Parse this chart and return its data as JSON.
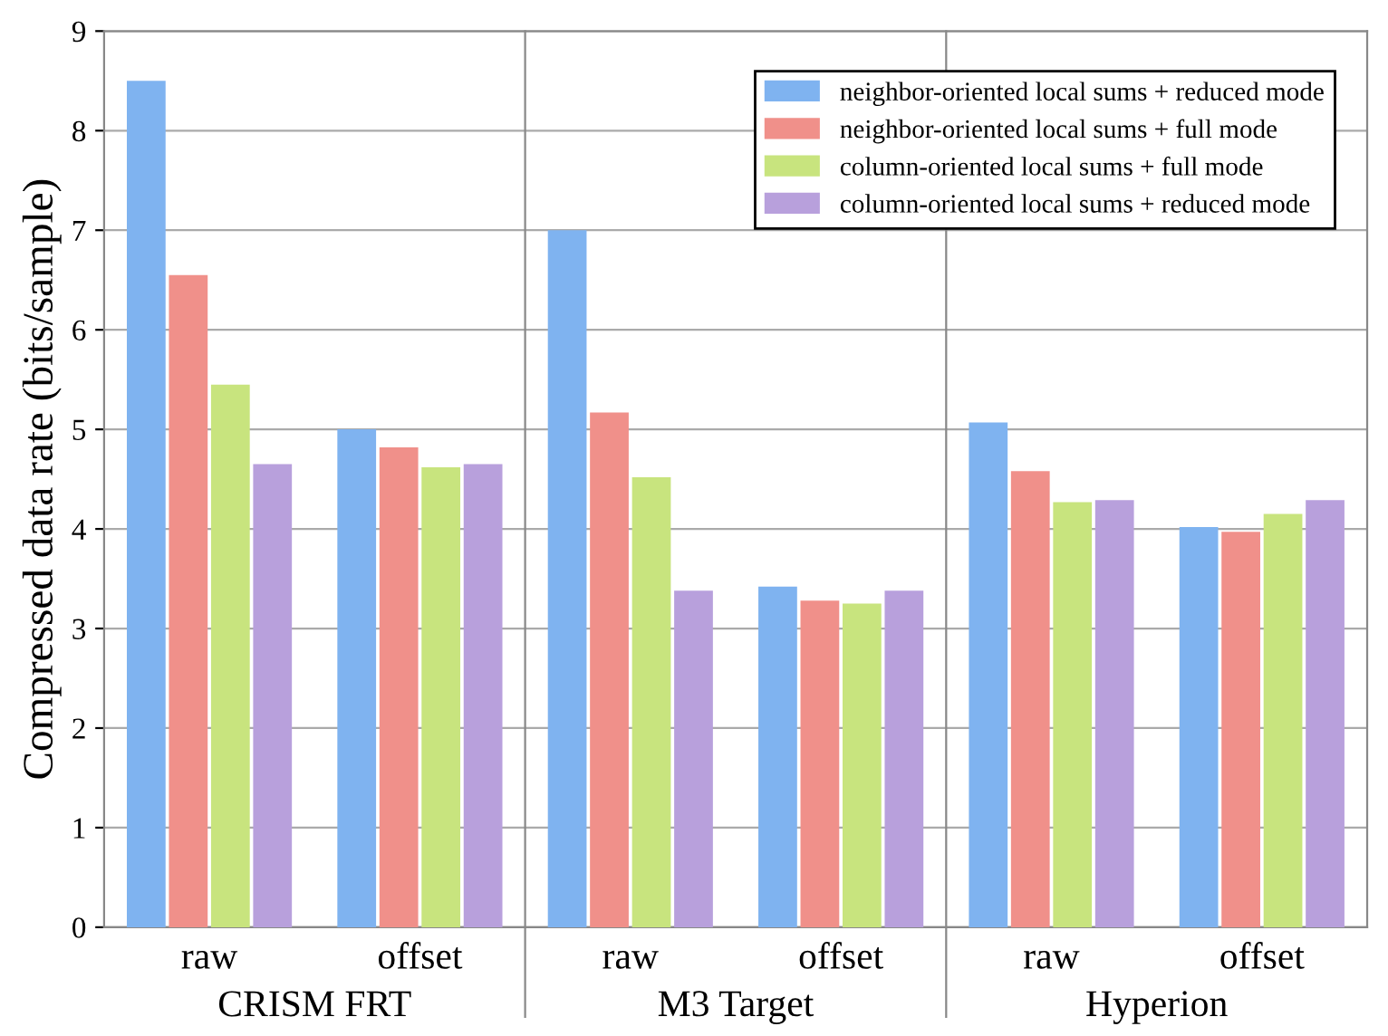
{
  "chart_data": {
    "type": "bar",
    "ylabel": "Compressed data rate (bits/sample)",
    "categories": [
      "raw",
      "offset",
      "raw",
      "offset",
      "raw",
      "offset"
    ],
    "series": [
      {
        "name": "neighbor-oriented local sums + reduced mode",
        "color": "#7fb3f0",
        "values": [
          8.5,
          5.0,
          7.0,
          3.42,
          5.07,
          4.02
        ]
      },
      {
        "name": "neighbor-oriented local sums + full mode",
        "color": "#f0908a",
        "values": [
          6.55,
          4.82,
          5.17,
          3.28,
          4.58,
          3.97
        ]
      },
      {
        "name": "column-oriented local sums + full mode",
        "color": "#c8e47e",
        "values": [
          5.45,
          4.62,
          4.52,
          3.25,
          4.27,
          4.15
        ]
      },
      {
        "name": "column-oriented local sums + reduced mode",
        "color": "#b8a0dc",
        "values": [
          4.65,
          4.65,
          3.38,
          3.38,
          4.29,
          4.29
        ]
      }
    ],
    "annotations": [
      "CRISM FRT",
      "M3 Target",
      "Hyperion"
    ],
    "ylim": [
      0,
      9
    ],
    "yticks": [
      0,
      1,
      2,
      3,
      4,
      5,
      6,
      7,
      8,
      9
    ],
    "grid": "y",
    "legend": "top right"
  }
}
